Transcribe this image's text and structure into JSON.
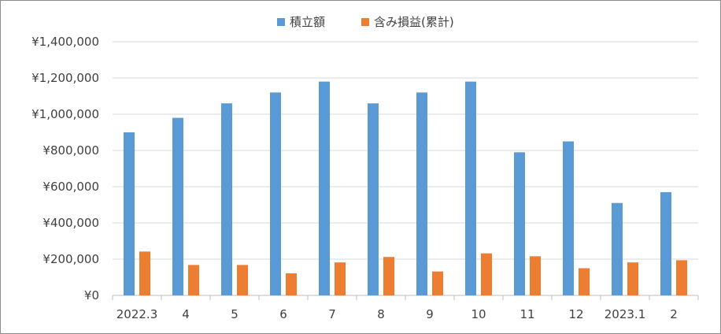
{
  "chart_data": {
    "type": "bar",
    "title": "",
    "xlabel": "",
    "ylabel": "",
    "categories": [
      "2022.3",
      "4",
      "5",
      "6",
      "7",
      "8",
      "9",
      "10",
      "11",
      "12",
      "2023.1",
      "2"
    ],
    "series": [
      {
        "name": "積立額",
        "color": "#5b9bd5",
        "values": [
          900000,
          980000,
          1060000,
          1120000,
          1180000,
          1060000,
          1120000,
          1180000,
          790000,
          850000,
          510000,
          570000
        ]
      },
      {
        "name": "含み損益(累計)",
        "color": "#ed7d31",
        "values": [
          242000,
          168000,
          168000,
          122000,
          182000,
          212000,
          132000,
          232000,
          216000,
          150000,
          182000,
          194000
        ]
      }
    ],
    "ylim": [
      0,
      1400000
    ],
    "yticks": [
      0,
      200000,
      400000,
      600000,
      800000,
      1000000,
      1200000,
      1400000
    ],
    "ytick_labels": [
      "¥0",
      "¥200,000",
      "¥400,000",
      "¥600,000",
      "¥800,000",
      "¥1,000,000",
      "¥1,200,000",
      "¥1,400,000"
    ],
    "grid": true,
    "legend_position": "top-center"
  }
}
